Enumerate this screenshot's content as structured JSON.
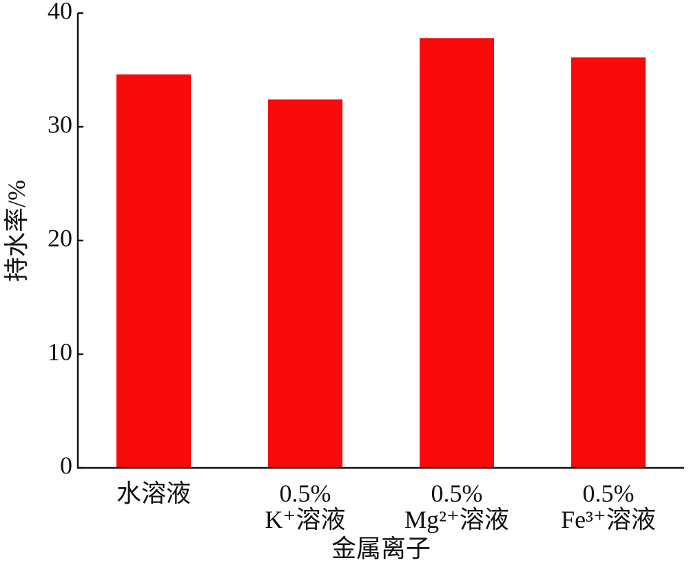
{
  "chart_data": {
    "type": "bar",
    "categories": [
      "水溶液",
      "0.5%\nK⁺溶液",
      "0.5%\nMg²⁺溶液",
      "0.5%\nFe³⁺溶液"
    ],
    "values": [
      34.6,
      32.4,
      37.8,
      36.1
    ],
    "color": "#f90a0a",
    "xlabel": "金属离子",
    "ylabel": "持水率/%",
    "ylim": [
      0,
      40
    ],
    "yticks": [
      0,
      10,
      20,
      30,
      40
    ],
    "grid": false
  }
}
